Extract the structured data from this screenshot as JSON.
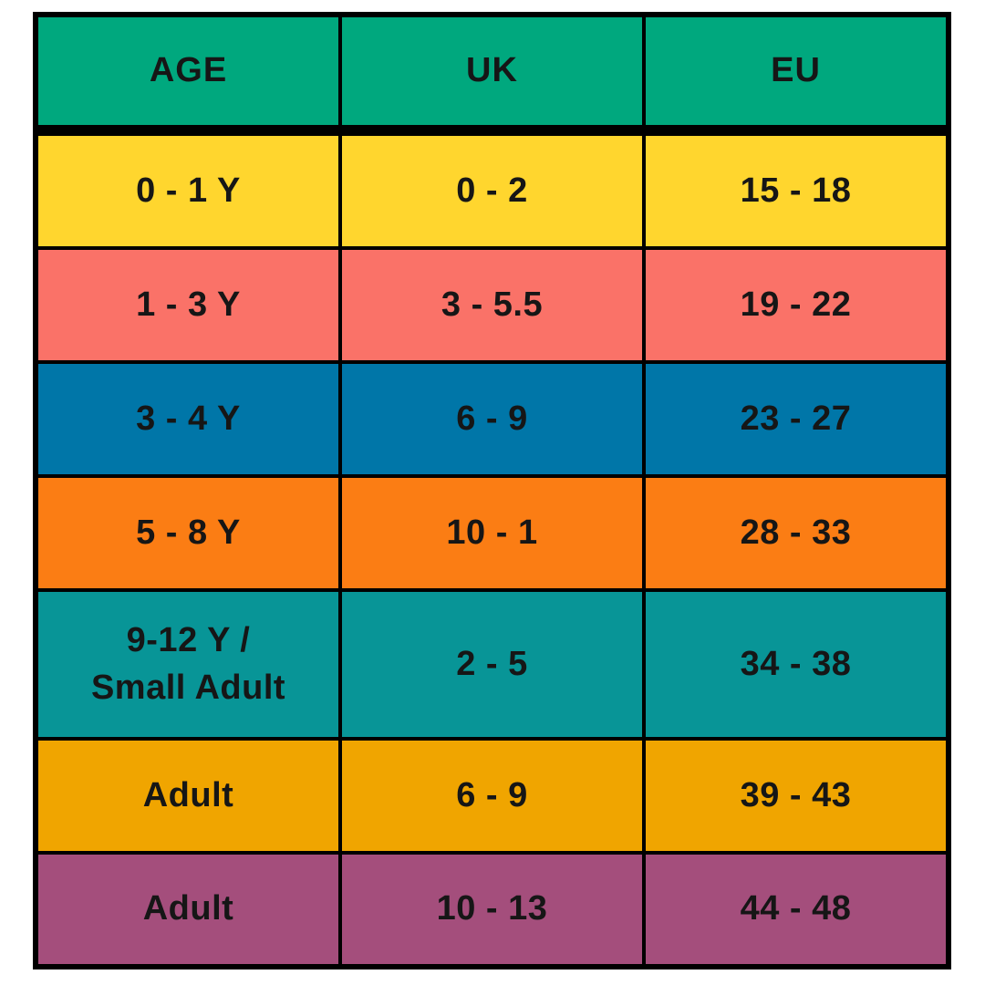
{
  "chart_data": {
    "type": "table",
    "columns": [
      "AGE",
      "UK",
      "EU"
    ],
    "rows": [
      [
        "0 - 1 Y",
        "0 - 2",
        "15 - 18"
      ],
      [
        "1 - 3 Y",
        "3 - 5.5",
        "19 - 22"
      ],
      [
        "3 - 4 Y",
        "6 - 9",
        "23 - 27"
      ],
      [
        "5 - 8 Y",
        "10 - 1",
        "28 - 33"
      ],
      [
        "9-12 Y / Small Adult",
        "2 - 5",
        "34 - 38"
      ],
      [
        "Adult",
        "6 - 9",
        "39 - 43"
      ],
      [
        "Adult",
        "10 - 13",
        "44 - 48"
      ]
    ],
    "layout": "grid with black borders, one colored band per row"
  },
  "table": {
    "border_color": "#000000",
    "text_color": "#161616",
    "header": {
      "color": "#00A87E",
      "labels": [
        "AGE",
        "UK",
        "EU"
      ]
    },
    "rows": [
      {
        "color": "#FFD62E",
        "age_lines": [
          "0 - 1 Y"
        ],
        "uk": "0 - 2",
        "eu": "15 - 18"
      },
      {
        "color": "#FA7268",
        "age_lines": [
          "1 - 3 Y"
        ],
        "uk": "3 - 5.5",
        "eu": "19 - 22"
      },
      {
        "color": "#0076A8",
        "age_lines": [
          "3 - 4 Y"
        ],
        "uk": "6 - 9",
        "eu": "23 - 27"
      },
      {
        "color": "#FB7D14",
        "age_lines": [
          "5 - 8 Y"
        ],
        "uk": "10 - 1",
        "eu": "28 - 33"
      },
      {
        "color": "#089597",
        "age_lines": [
          "9-12 Y /",
          "Small Adult"
        ],
        "uk": "2 - 5",
        "eu": "34 - 38"
      },
      {
        "color": "#F0A500",
        "age_lines": [
          "Adult"
        ],
        "uk": "6 - 9",
        "eu": "39 - 43"
      },
      {
        "color": "#A44E7C",
        "age_lines": [
          "Adult"
        ],
        "uk": "10 - 13",
        "eu": "44 - 48"
      }
    ]
  }
}
